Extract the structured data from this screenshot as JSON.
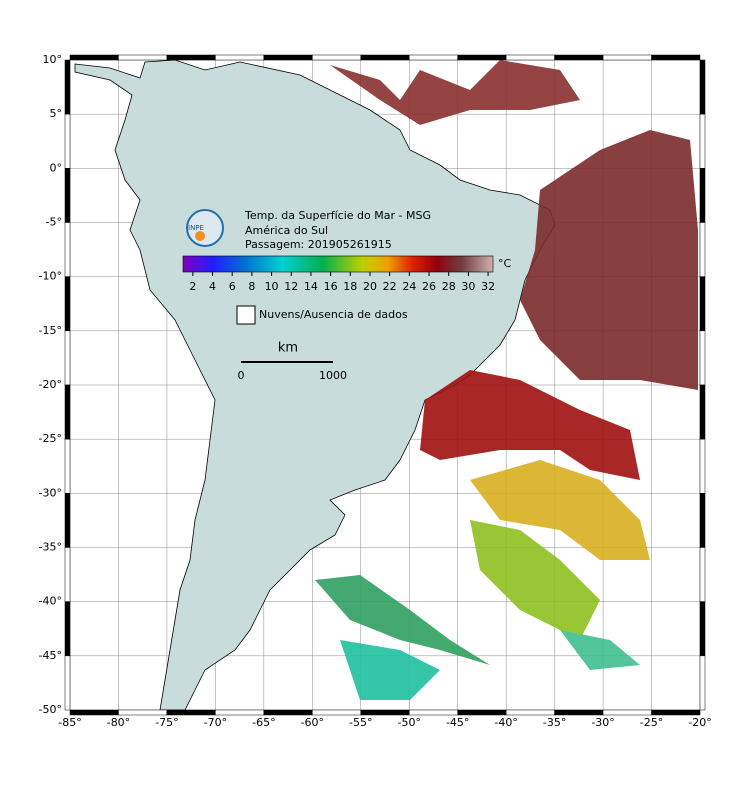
{
  "header": {
    "title": "Temp. da Superfície do Mar - MSG",
    "region": "América do Sul",
    "pass": "Passagem: 201905261915",
    "logo": "INPE"
  },
  "colorbar": {
    "unit": "°C",
    "range": [
      1,
      32.5
    ],
    "ticks": [
      2,
      4,
      6,
      8,
      10,
      12,
      14,
      16,
      18,
      20,
      22,
      24,
      26,
      28,
      30,
      32
    ]
  },
  "legend": {
    "label": "Nuvens/Ausencia de dados"
  },
  "scale": {
    "unit": "km",
    "labels": [
      "0",
      "1000"
    ]
  },
  "map": {
    "xlim": [
      -85,
      -20
    ],
    "ylim": [
      -50,
      10
    ],
    "xticks": [
      {
        "value": -85,
        "label": "-85°"
      },
      {
        "value": -80,
        "label": "-80°"
      },
      {
        "value": -75,
        "label": "-75°"
      },
      {
        "value": -70,
        "label": "-70°"
      },
      {
        "value": -65,
        "label": "-65°"
      },
      {
        "value": -60,
        "label": "-60°"
      },
      {
        "value": -55,
        "label": "-55°"
      },
      {
        "value": -50,
        "label": "-50°"
      },
      {
        "value": -45,
        "label": "-45°"
      },
      {
        "value": -40,
        "label": "-40°"
      },
      {
        "value": -35,
        "label": "-35°"
      },
      {
        "value": -30,
        "label": "-30°"
      },
      {
        "value": -25,
        "label": "-25°"
      },
      {
        "value": -20,
        "label": "-20°"
      }
    ],
    "yticks": [
      {
        "value": 10,
        "label": "10°"
      },
      {
        "value": 5,
        "label": "5°"
      },
      {
        "value": 0,
        "label": "0°"
      },
      {
        "value": -5,
        "label": "-5°"
      },
      {
        "value": -10,
        "label": "-10°"
      },
      {
        "value": -15,
        "label": "-15°"
      },
      {
        "value": -20,
        "label": "-20°"
      },
      {
        "value": -25,
        "label": "-25°"
      },
      {
        "value": -30,
        "label": "-30°"
      },
      {
        "value": -35,
        "label": "-35°"
      },
      {
        "value": -40,
        "label": "-40°"
      },
      {
        "value": -45,
        "label": "-45°"
      },
      {
        "value": -50,
        "label": "-50°"
      }
    ]
  }
}
